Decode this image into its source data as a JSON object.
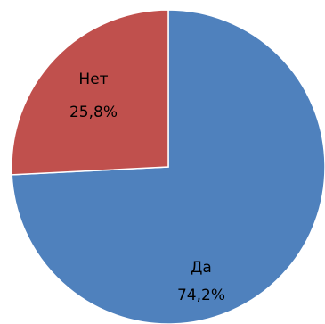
{
  "chart_data": {
    "type": "pie",
    "categories": [
      "Да",
      "Нет"
    ],
    "values": [
      74.2,
      25.8
    ],
    "labels": [
      {
        "category": "Да",
        "percent": "74,2%"
      },
      {
        "category": "Нет",
        "percent": "25,8%"
      }
    ],
    "colors": [
      "#4F81BD",
      "#C0504D"
    ],
    "start": "12 o'clock, clockwise"
  }
}
